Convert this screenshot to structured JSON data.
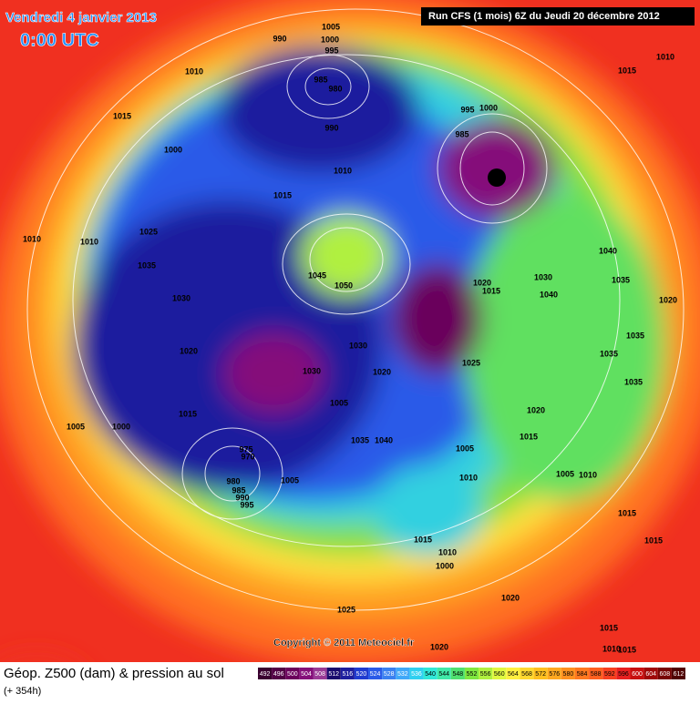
{
  "header": {
    "date_title": "Vendredi 4 janvier 2013",
    "time": "0:00 UTC",
    "run_info": "Run CFS (1 mois) 6Z du Jeudi 20 décembre 2012"
  },
  "copyright": "Copyright © 2011 Meteociel.fr",
  "footer": {
    "title": "Géop. Z500 (dam) & pression au sol",
    "forecast": "(+ 354h)"
  },
  "legend": {
    "levels": [
      492,
      496,
      500,
      504,
      508,
      512,
      516,
      520,
      524,
      528,
      532,
      536,
      540,
      544,
      548,
      552,
      556,
      560,
      564,
      568,
      572,
      576,
      580,
      584,
      588,
      592,
      596,
      600,
      604,
      608,
      612
    ],
    "colors": [
      "#3a0030",
      "#520045",
      "#6b005c",
      "#850f7a",
      "#9a3a96",
      "#1a0a6e",
      "#1e1e9e",
      "#1f3bd0",
      "#2a5ae8",
      "#3a80f0",
      "#40a8f8",
      "#30d0f0",
      "#30e8d8",
      "#40e8a8",
      "#50e070",
      "#80e840",
      "#b0f040",
      "#e0f840",
      "#fff040",
      "#ffd830",
      "#ffc020",
      "#ffa820",
      "#ff9020",
      "#ff7820",
      "#ff6020",
      "#f84020",
      "#e82020",
      "#c81010",
      "#a00808",
      "#780404",
      "#500000"
    ]
  },
  "pressure_labels": [
    1005,
    990,
    1000,
    995,
    985,
    980,
    990,
    1010,
    1015,
    1000,
    1010,
    1015,
    995,
    1000,
    985,
    1010,
    1015,
    1010,
    1010,
    1025,
    1035,
    1030,
    1020,
    1045,
    1050,
    1020,
    1015,
    1030,
    1040,
    1040,
    1035,
    1020,
    1035,
    1035,
    1035,
    1030,
    1030,
    1020,
    1005,
    1025,
    1020,
    1015,
    1015,
    1005,
    1000,
    975,
    970,
    980,
    985,
    990,
    995,
    1005,
    1035,
    1040,
    1005,
    1010,
    1005,
    1010,
    1015,
    1015,
    1015,
    1010,
    1000,
    1020,
    1025,
    1020,
    1015,
    1010,
    1015
  ]
}
